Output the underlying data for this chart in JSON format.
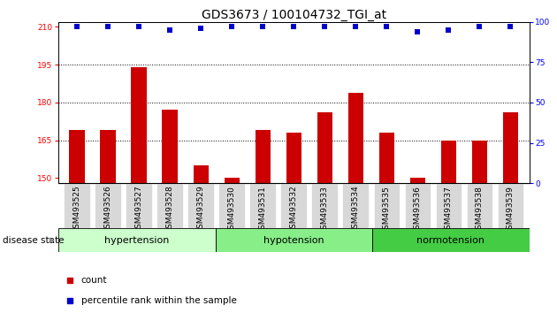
{
  "title": "GDS3673 / 100104732_TGI_at",
  "categories": [
    "GSM493525",
    "GSM493526",
    "GSM493527",
    "GSM493528",
    "GSM493529",
    "GSM493530",
    "GSM493531",
    "GSM493532",
    "GSM493533",
    "GSM493534",
    "GSM493535",
    "GSM493536",
    "GSM493537",
    "GSM493538",
    "GSM493539"
  ],
  "bar_values": [
    169,
    169,
    194,
    177,
    155,
    150,
    169,
    168,
    176,
    184,
    168,
    150,
    165,
    165,
    176
  ],
  "percentile_values": [
    97,
    97,
    97,
    95,
    96,
    97,
    97,
    97,
    97,
    97,
    97,
    94,
    95,
    97,
    97
  ],
  "bar_color": "#cc0000",
  "dot_color": "#0000cc",
  "ylim_left": [
    148,
    212
  ],
  "ylim_right": [
    0,
    100
  ],
  "yticks_left": [
    150,
    165,
    180,
    195,
    210
  ],
  "yticks_right": [
    0,
    25,
    50,
    75,
    100
  ],
  "hlines": [
    165,
    180,
    195
  ],
  "groups": [
    {
      "label": "hypertension",
      "start": 0,
      "end": 5
    },
    {
      "label": "hypotension",
      "start": 5,
      "end": 10
    },
    {
      "label": "normotension",
      "start": 10,
      "end": 15
    }
  ],
  "group_colors": [
    "#ccffcc",
    "#88ee88",
    "#44cc44"
  ],
  "disease_state_label": "disease state",
  "legend_count_label": "count",
  "legend_percentile_label": "percentile rank within the sample",
  "bar_width": 0.5,
  "dot_size": 22,
  "title_fontsize": 10,
  "tick_fontsize": 6.5,
  "group_label_fontsize": 8,
  "xtick_bg_color": "#d8d8d8"
}
